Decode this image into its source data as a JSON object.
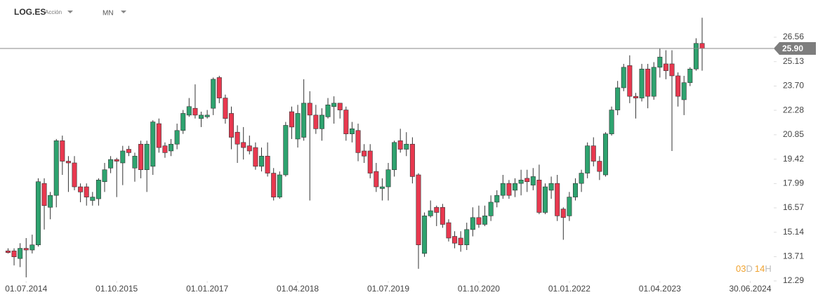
{
  "header": {
    "symbol": "LOG.ES",
    "instrument_type": "Acción",
    "timeframe": "MN"
  },
  "countdown": {
    "days": "03",
    "day_unit": "D",
    "hours": "14",
    "hour_unit": "H"
  },
  "chart_data": {
    "type": "candlestick",
    "x": [
      "01.04.2014",
      "01.05.2014",
      "01.06.2014",
      "01.07.2014",
      "01.08.2014",
      "01.09.2014",
      "01.10.2014",
      "01.11.2014",
      "01.12.2014",
      "01.01.2015",
      "01.02.2015",
      "01.03.2015",
      "01.04.2015",
      "01.05.2015",
      "01.06.2015",
      "01.07.2015",
      "01.08.2015",
      "01.09.2015",
      "01.10.2015",
      "01.11.2015",
      "01.12.2015",
      "01.01.2016",
      "01.02.2016",
      "01.03.2016",
      "01.04.2016",
      "01.05.2016",
      "01.06.2016",
      "01.07.2016",
      "01.08.2016",
      "01.09.2016",
      "01.10.2016",
      "01.11.2016",
      "01.12.2016",
      "01.01.2017",
      "01.02.2017",
      "01.03.2017",
      "01.04.2017",
      "01.05.2017",
      "01.06.2017",
      "01.07.2017",
      "01.08.2017",
      "01.09.2017",
      "01.10.2017",
      "01.11.2017",
      "01.12.2017",
      "01.01.2018",
      "01.02.2018",
      "01.03.2018",
      "01.04.2018",
      "01.05.2018",
      "01.06.2018",
      "01.07.2018",
      "01.08.2018",
      "01.09.2018",
      "01.10.2018",
      "01.11.2018",
      "01.12.2018",
      "01.01.2019",
      "01.02.2019",
      "01.03.2019",
      "01.04.2019",
      "01.05.2019",
      "01.06.2019",
      "01.07.2019",
      "01.08.2019",
      "01.09.2019",
      "01.10.2019",
      "01.11.2019",
      "01.12.2019",
      "01.01.2020",
      "01.02.2020",
      "01.03.2020",
      "01.04.2020",
      "01.05.2020",
      "01.06.2020",
      "01.07.2020",
      "01.08.2020",
      "01.09.2020",
      "01.10.2020",
      "01.11.2020",
      "01.12.2020",
      "01.01.2021",
      "01.02.2021",
      "01.03.2021",
      "01.04.2021",
      "01.05.2021",
      "01.06.2021",
      "01.07.2021",
      "01.08.2021",
      "01.09.2021",
      "01.10.2021",
      "01.11.2021",
      "01.12.2021",
      "01.01.2022",
      "01.02.2022",
      "01.03.2022",
      "01.04.2022",
      "01.05.2022",
      "01.06.2022",
      "01.07.2022",
      "01.08.2022",
      "01.09.2022",
      "01.10.2022",
      "01.11.2022",
      "01.12.2022",
      "01.01.2023",
      "01.02.2023",
      "01.03.2023",
      "01.04.2023",
      "01.05.2023",
      "01.06.2023",
      "01.07.2023",
      "01.08.2023",
      "01.09.2023",
      "01.10.2023",
      "01.11.2023"
    ],
    "open": [
      14.05,
      14.05,
      13.6,
      14.2,
      14.1,
      14.4,
      18.0,
      16.6,
      17.3,
      20.5,
      19.3,
      19.2,
      17.8,
      17.8,
      17.0,
      17.1,
      18.1,
      18.9,
      19.4,
      19.2,
      20.0,
      18.9,
      20.3,
      18.8,
      19.0,
      21.5,
      20.2,
      19.9,
      20.3,
      21.1,
      22.0,
      22.4,
      21.8,
      21.9,
      22.4,
      24.2,
      23.0,
      22.1,
      21.0,
      20.4,
      20.2,
      20.1,
      19.0,
      19.6,
      18.6,
      17.2,
      18.5,
      22.2,
      20.6,
      20.7,
      22.7,
      22.0,
      21.2,
      21.9,
      22.5,
      22.7,
      22.3,
      20.9,
      21.1,
      19.9,
      19.9,
      18.7,
      17.7,
      17.8,
      18.8,
      20.5,
      20.0,
      20.3,
      18.5,
      13.9,
      16.1,
      16.6,
      16.6,
      15.7,
      14.9,
      14.8,
      14.4,
      15.3,
      16.0,
      15.6,
      16.1,
      16.9,
      17.3,
      18.0,
      17.6,
      18.0,
      18.3,
      17.9,
      18.2,
      16.3,
      17.6,
      18.0,
      16.5,
      16.1,
      17.2,
      18.0,
      18.6,
      20.2,
      19.3,
      18.5,
      20.9,
      22.3,
      23.6,
      24.9,
      23.1,
      23.0,
      24.7,
      23.1,
      24.8,
      25.0,
      25.0,
      24.3,
      22.9,
      23.9,
      24.7,
      26.2
    ],
    "high": [
      14.2,
      14.2,
      14.5,
      14.8,
      15.0,
      18.3,
      18.3,
      17.5,
      20.6,
      20.8,
      19.6,
      19.6,
      18.0,
      18.0,
      17.5,
      18.3,
      19.2,
      19.6,
      19.5,
      20.2,
      20.2,
      19.8,
      20.5,
      20.5,
      21.7,
      21.8,
      20.4,
      20.6,
      21.5,
      22.3,
      23.0,
      23.8,
      22.2,
      22.3,
      24.2,
      24.3,
      23.2,
      22.5,
      21.4,
      21.3,
      20.8,
      20.4,
      20.1,
      20.4,
      18.9,
      18.7,
      21.6,
      22.5,
      22.6,
      24.1,
      23.4,
      22.6,
      22.4,
      23.0,
      23.1,
      22.7,
      22.5,
      21.6,
      21.5,
      20.3,
      20.3,
      19.2,
      18.3,
      19.2,
      20.5,
      21.2,
      21.0,
      20.7,
      18.6,
      16.3,
      17.0,
      16.7,
      16.8,
      15.9,
      15.2,
      15.2,
      15.7,
      16.6,
      16.7,
      16.7,
      17.3,
      17.6,
      18.5,
      18.2,
      18.3,
      18.8,
      18.8,
      18.9,
      19.1,
      18.0,
      18.4,
      18.5,
      16.6,
      17.5,
      18.3,
      18.8,
      20.4,
      20.7,
      19.6,
      21.0,
      22.5,
      24.0,
      25.0,
      25.5,
      23.3,
      25.0,
      25.0,
      25.1,
      25.9,
      25.8,
      25.8,
      24.5,
      24.3,
      24.8,
      26.5,
      27.7
    ],
    "low": [
      13.9,
      13.2,
      13.1,
      12.5,
      13.9,
      14.3,
      15.3,
      15.9,
      16.6,
      18.5,
      17.5,
      17.6,
      16.9,
      16.7,
      16.7,
      16.7,
      17.5,
      18.6,
      17.2,
      17.9,
      19.6,
      18.1,
      18.3,
      17.5,
      18.5,
      19.8,
      19.5,
      19.6,
      20.0,
      20.9,
      21.9,
      21.8,
      21.3,
      21.8,
      22.0,
      22.7,
      21.5,
      20.0,
      19.2,
      19.4,
      19.7,
      18.8,
      18.7,
      18.4,
      17.0,
      17.1,
      18.4,
      20.6,
      20.1,
      20.5,
      17.0,
      20.9,
      20.5,
      21.8,
      21.5,
      21.8,
      20.5,
      20.4,
      19.3,
      19.2,
      18.3,
      17.5,
      17.0,
      17.0,
      18.4,
      19.8,
      19.6,
      18.0,
      13.0,
      13.7,
      16.0,
      15.5,
      15.4,
      14.6,
      14.2,
      14.0,
      14.1,
      14.9,
      15.4,
      15.5,
      15.8,
      16.6,
      17.1,
      17.1,
      17.2,
      17.3,
      17.5,
      17.6,
      16.2,
      16.2,
      17.1,
      15.8,
      14.7,
      15.8,
      17.0,
      17.5,
      18.3,
      19.0,
      18.2,
      18.4,
      20.8,
      22.0,
      23.4,
      22.7,
      21.8,
      22.8,
      22.4,
      22.9,
      24.2,
      24.1,
      19.9,
      22.5,
      22.0,
      23.7,
      24.6,
      24.6
    ],
    "close": [
      13.95,
      13.7,
      14.2,
      14.1,
      14.4,
      18.1,
      16.7,
      17.3,
      20.5,
      19.3,
      19.2,
      17.8,
      17.5,
      17.2,
      17.2,
      18.2,
      18.8,
      19.4,
      19.3,
      19.9,
      19.8,
      19.6,
      18.8,
      20.3,
      21.6,
      20.1,
      19.8,
      20.3,
      21.1,
      22.1,
      22.5,
      22.0,
      22.0,
      22.0,
      24.1,
      23.0,
      21.8,
      20.7,
      20.3,
      20.1,
      19.9,
      19.0,
      19.6,
      18.6,
      17.2,
      18.5,
      21.4,
      21.3,
      22.1,
      22.7,
      22.0,
      21.2,
      22.0,
      22.6,
      22.7,
      22.3,
      20.9,
      21.2,
      19.8,
      19.6,
      18.6,
      17.8,
      17.8,
      18.8,
      20.4,
      20.0,
      20.3,
      18.4,
      14.4,
      16.1,
      16.4,
      16.3,
      15.6,
      14.8,
      14.5,
      14.4,
      15.3,
      16.0,
      15.6,
      16.1,
      16.9,
      17.3,
      18.0,
      17.3,
      18.0,
      18.2,
      18.1,
      18.4,
      16.3,
      17.8,
      18.0,
      16.1,
      16.0,
      17.2,
      18.0,
      18.6,
      20.2,
      19.3,
      18.7,
      20.9,
      22.3,
      23.6,
      24.8,
      23.1,
      23.0,
      24.7,
      23.1,
      24.8,
      25.4,
      24.6,
      24.3,
      23.1,
      23.9,
      24.7,
      26.2,
      25.9
    ],
    "up_color": "#2ea36f",
    "down_color": "#e8384f",
    "xlim": [
      "21.02.2014",
      "20.10.2024"
    ],
    "xticks": [
      "01.07.2014",
      "01.10.2015",
      "01.01.2017",
      "01.04.2018",
      "01.07.2019",
      "01.10.2020",
      "01.01.2022",
      "01.04.2023",
      "30.06.2024"
    ],
    "ylim": [
      12.29,
      28.74
    ],
    "yticks": [
      26.56,
      25.13,
      {
        "value": 23.7,
        "label": "23.70"
      },
      22.28,
      20.85,
      19.42,
      17.99,
      16.57,
      15.14,
      13.71,
      12.29
    ],
    "price_line": {
      "value": 25.9,
      "label": "25.90"
    },
    "grid": false
  }
}
